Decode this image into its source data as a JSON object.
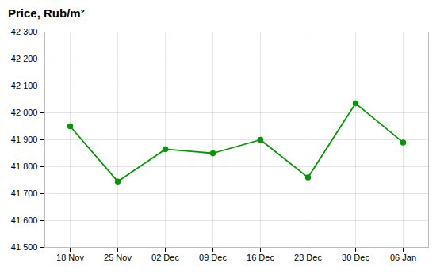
{
  "chart_data": {
    "type": "line",
    "title": "Price, Rub/m²",
    "categories": [
      "18 Nov",
      "25 Nov",
      "02 Dec",
      "09 Dec",
      "16 Dec",
      "23 Dec",
      "30 Dec",
      "06 Jan"
    ],
    "values": [
      41950,
      41745,
      41865,
      41850,
      41900,
      41760,
      42035,
      41890
    ],
    "color": "#009900",
    "marker": "circle",
    "ylim": [
      41500,
      42300
    ],
    "yticks": [
      {
        "value": 41500,
        "label": "41 500"
      },
      {
        "value": 41600,
        "label": "41 600"
      },
      {
        "value": 41700,
        "label": "41 700"
      },
      {
        "value": 41800,
        "label": "41 800"
      },
      {
        "value": 41900,
        "label": "41 900"
      },
      {
        "value": 42000,
        "label": "42 000"
      },
      {
        "value": 42100,
        "label": "42 100"
      },
      {
        "value": 42200,
        "label": "42 200"
      },
      {
        "value": 42300,
        "label": "42 300"
      }
    ],
    "grid": true
  }
}
